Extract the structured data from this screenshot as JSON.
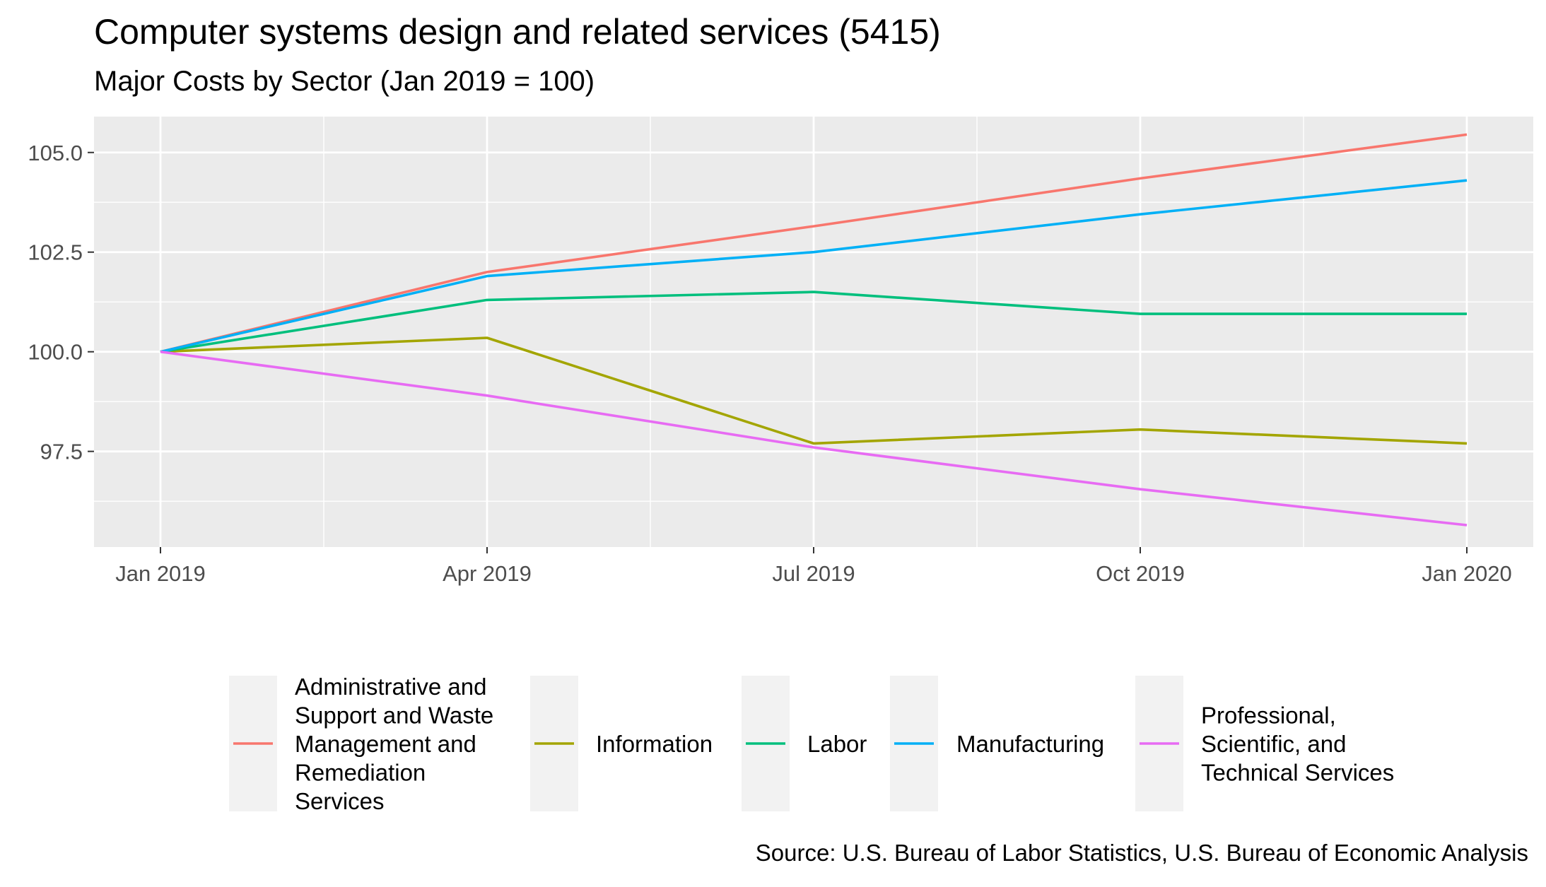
{
  "chart_data": {
    "type": "line",
    "title": "Computer systems design and related services (5415)",
    "subtitle": "Major Costs by Sector (Jan 2019 = 100)",
    "caption": "Source: U.S. Bureau of Labor Statistics, U.S. Bureau of Economic Analysis",
    "xlabel": "",
    "ylabel": "",
    "x": [
      "Jan 2019",
      "Apr 2019",
      "Jul 2019",
      "Oct 2019",
      "Jan 2020"
    ],
    "x_ticks": [
      "Jan 2019",
      "Apr 2019",
      "Jul 2019",
      "Oct 2019",
      "Jan 2020"
    ],
    "y_ticks": [
      "97.5",
      "100.0",
      "102.5",
      "105.0"
    ],
    "ylim": [
      95.1,
      105.9
    ],
    "grid": true,
    "legend_position": "bottom",
    "series": [
      {
        "name": "Administrative and Support and Waste Management and Remediation Services",
        "legend_lines": [
          "Administrative and",
          "Support and Waste",
          "Management and",
          "Remediation",
          "Services"
        ],
        "color": "#F8766D",
        "values": [
          100.0,
          102.0,
          103.15,
          104.35,
          105.45
        ]
      },
      {
        "name": "Information",
        "legend_lines": [
          "Information"
        ],
        "color": "#A3A500",
        "values": [
          100.0,
          100.35,
          97.7,
          98.05,
          97.7
        ]
      },
      {
        "name": "Labor",
        "legend_lines": [
          "Labor"
        ],
        "color": "#00BF7D",
        "values": [
          100.0,
          101.3,
          101.5,
          100.95,
          100.95
        ]
      },
      {
        "name": "Manufacturing",
        "legend_lines": [
          "Manufacturing"
        ],
        "color": "#00B0F6",
        "values": [
          100.0,
          101.9,
          102.5,
          103.45,
          104.3
        ]
      },
      {
        "name": "Professional, Scientific, and Technical Services",
        "legend_lines": [
          "Professional,",
          "Scientific, and",
          "Technical Services"
        ],
        "color": "#E76BF3",
        "values": [
          100.0,
          98.9,
          97.6,
          96.55,
          95.65
        ]
      }
    ]
  }
}
